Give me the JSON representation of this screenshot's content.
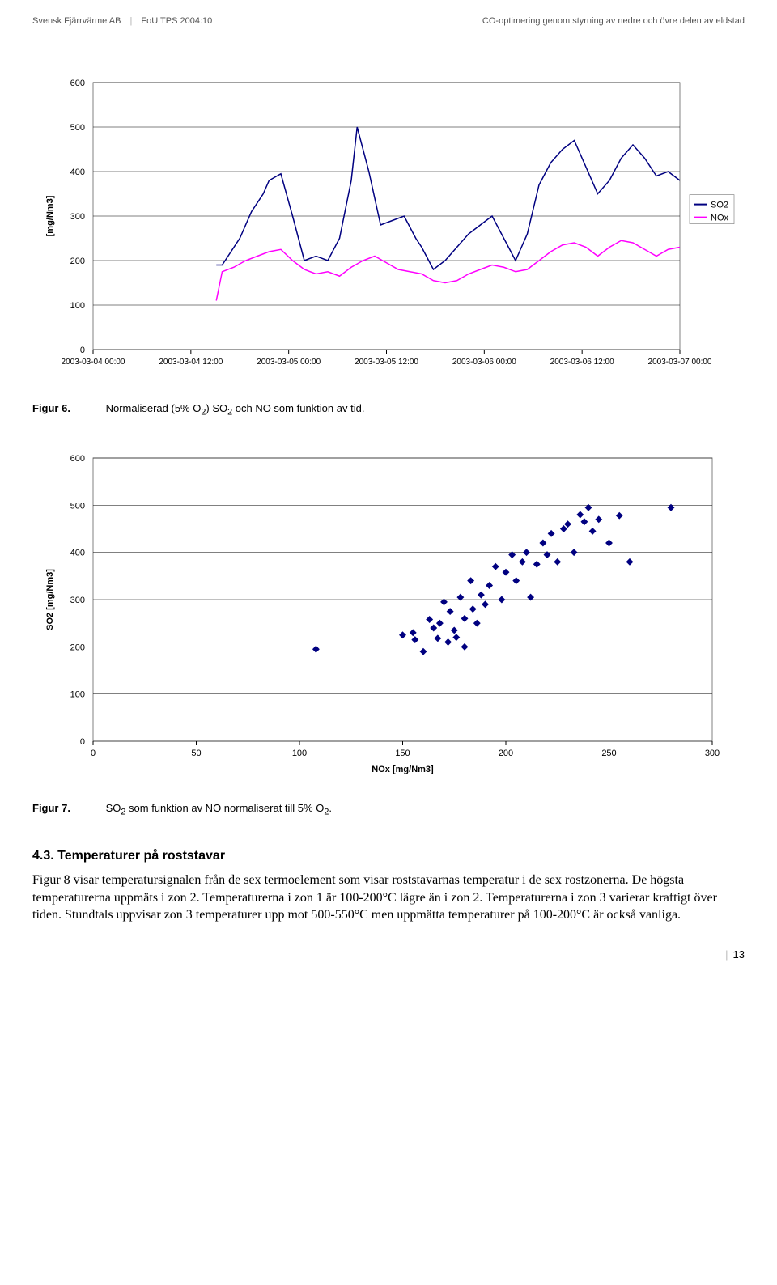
{
  "header": {
    "left1": "Svensk Fjärrvärme AB",
    "left2": "FoU TPS 2004:10",
    "right": "CO-optimering genom styrning av nedre och övre delen av eldstad"
  },
  "chart1": {
    "type": "line",
    "ylabel": "[mg/Nm3]",
    "ylim": [
      0,
      600
    ],
    "ytick_step": 100,
    "yticks": [
      0,
      100,
      200,
      300,
      400,
      500,
      600
    ],
    "xticks": [
      "2003-03-04 00:00",
      "2003-03-04 12:00",
      "2003-03-05 00:00",
      "2003-03-05 12:00",
      "2003-03-06 00:00",
      "2003-03-06 12:00",
      "2003-03-07 00:00"
    ],
    "background_color": "#ffffff",
    "plot_bg": "#ffffff",
    "grid_color": "#000000",
    "border_color": "#808080",
    "legend": {
      "position": "right",
      "items": [
        {
          "label": "SO2",
          "color": "#000080"
        },
        {
          "label": "NOx",
          "color": "#ff00ff"
        }
      ]
    },
    "series": [
      {
        "name": "SO2",
        "color": "#000080",
        "line_width": 1.5,
        "x": [
          0.21,
          0.22,
          0.23,
          0.25,
          0.27,
          0.29,
          0.3,
          0.32,
          0.34,
          0.36,
          0.38,
          0.4,
          0.42,
          0.44,
          0.45,
          0.47,
          0.49,
          0.51,
          0.53,
          0.55,
          0.56,
          0.58,
          0.6,
          0.62,
          0.64,
          0.66,
          0.68,
          0.7,
          0.72,
          0.74,
          0.76,
          0.78,
          0.8,
          0.82,
          0.84,
          0.86,
          0.88,
          0.9,
          0.92,
          0.94,
          0.96,
          0.98,
          1.0
        ],
        "y": [
          190,
          190,
          210,
          250,
          310,
          350,
          380,
          395,
          300,
          200,
          210,
          200,
          250,
          380,
          500,
          400,
          280,
          290,
          300,
          250,
          230,
          180,
          200,
          230,
          260,
          280,
          300,
          250,
          200,
          260,
          370,
          420,
          450,
          470,
          410,
          350,
          380,
          430,
          460,
          430,
          390,
          400,
          380
        ]
      },
      {
        "name": "NOx",
        "color": "#ff00ff",
        "line_width": 1.5,
        "x": [
          0.21,
          0.22,
          0.24,
          0.26,
          0.28,
          0.3,
          0.32,
          0.34,
          0.36,
          0.38,
          0.4,
          0.42,
          0.44,
          0.46,
          0.48,
          0.5,
          0.52,
          0.54,
          0.56,
          0.58,
          0.6,
          0.62,
          0.64,
          0.66,
          0.68,
          0.7,
          0.72,
          0.74,
          0.76,
          0.78,
          0.8,
          0.82,
          0.84,
          0.86,
          0.88,
          0.9,
          0.92,
          0.94,
          0.96,
          0.98,
          1.0
        ],
        "y": [
          110,
          175,
          185,
          200,
          210,
          220,
          225,
          200,
          180,
          170,
          175,
          165,
          185,
          200,
          210,
          195,
          180,
          175,
          170,
          155,
          150,
          155,
          170,
          180,
          190,
          185,
          175,
          180,
          200,
          220,
          235,
          240,
          230,
          210,
          230,
          245,
          240,
          225,
          210,
          225,
          230
        ]
      }
    ]
  },
  "caption1": {
    "label": "Figur 6.",
    "text_before_sub1": "Normaliserad (5% O",
    "sub1": "2",
    "text_mid": ") SO",
    "sub2": "2",
    "text_after": " och NO som funktion av tid."
  },
  "chart2": {
    "type": "scatter",
    "ylabel": "SO2 [mg/Nm3]",
    "xlabel": "NOx [mg/Nm3]",
    "ylim": [
      0,
      600
    ],
    "xlim": [
      0,
      300
    ],
    "yticks": [
      0,
      100,
      200,
      300,
      400,
      500,
      600
    ],
    "xticks": [
      0,
      50,
      100,
      150,
      200,
      250,
      300
    ],
    "background_color": "#ffffff",
    "grid_color": "#000000",
    "border_color": "#808080",
    "marker_color": "#000080",
    "marker_size": 6,
    "points": [
      [
        108,
        195
      ],
      [
        150,
        225
      ],
      [
        155,
        230
      ],
      [
        156,
        215
      ],
      [
        160,
        190
      ],
      [
        163,
        258
      ],
      [
        165,
        240
      ],
      [
        167,
        218
      ],
      [
        168,
        250
      ],
      [
        170,
        295
      ],
      [
        172,
        210
      ],
      [
        173,
        275
      ],
      [
        175,
        235
      ],
      [
        176,
        220
      ],
      [
        178,
        305
      ],
      [
        180,
        260
      ],
      [
        180,
        200
      ],
      [
        183,
        340
      ],
      [
        184,
        280
      ],
      [
        186,
        250
      ],
      [
        188,
        310
      ],
      [
        190,
        290
      ],
      [
        192,
        330
      ],
      [
        195,
        370
      ],
      [
        198,
        300
      ],
      [
        200,
        358
      ],
      [
        203,
        395
      ],
      [
        205,
        340
      ],
      [
        208,
        380
      ],
      [
        210,
        400
      ],
      [
        212,
        305
      ],
      [
        215,
        375
      ],
      [
        218,
        420
      ],
      [
        220,
        395
      ],
      [
        222,
        440
      ],
      [
        225,
        380
      ],
      [
        228,
        450
      ],
      [
        230,
        460
      ],
      [
        233,
        400
      ],
      [
        236,
        480
      ],
      [
        238,
        465
      ],
      [
        240,
        495
      ],
      [
        242,
        445
      ],
      [
        245,
        470
      ],
      [
        250,
        420
      ],
      [
        255,
        478
      ],
      [
        260,
        380
      ],
      [
        280,
        495
      ]
    ]
  },
  "caption2": {
    "label": "Figur 7.",
    "text_before_sub1": "SO",
    "sub1": "2",
    "text_mid": " som funktion av NO normaliserat till 5% O",
    "sub2": "2",
    "text_after": "."
  },
  "section": {
    "number": "4.3.",
    "title": "Temperaturer på roststavar"
  },
  "body": "Figur 8 visar temperatursignalen från de sex termoelement som visar roststavarnas temperatur i de sex rostzonerna. De högsta temperaturerna uppmäts i zon 2. Temperaturerna i zon 1 är 100-200°C lägre än i zon 2. Temperaturerna i zon 3 varierar kraftigt över tiden. Stundtals uppvisar zon 3 temperaturer upp mot 500-550°C men uppmätta temperaturer på 100-200°C är också vanliga.",
  "page_number": "13"
}
